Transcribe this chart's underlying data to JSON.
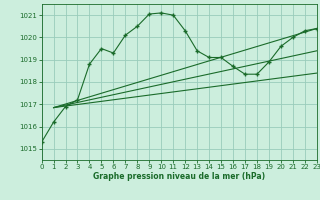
{
  "xlabel": "Graphe pression niveau de la mer (hPa)",
  "bg_color": "#cceedd",
  "grid_color": "#99ccbb",
  "line_color": "#1a6b2a",
  "ylim": [
    1014.5,
    1021.5
  ],
  "xlim": [
    0,
    23
  ],
  "yticks": [
    1015,
    1016,
    1017,
    1018,
    1019,
    1020,
    1021
  ],
  "xticks": [
    0,
    1,
    2,
    3,
    4,
    5,
    6,
    7,
    8,
    9,
    10,
    11,
    12,
    13,
    14,
    15,
    16,
    17,
    18,
    19,
    20,
    21,
    22,
    23
  ],
  "series1_x": [
    0,
    1,
    2,
    3,
    4,
    5,
    6,
    7,
    8,
    9,
    10,
    11,
    12,
    13,
    14,
    15,
    16,
    17,
    18,
    19,
    20,
    21,
    22,
    23
  ],
  "series1_y": [
    1015.3,
    1016.2,
    1016.9,
    1017.2,
    1018.8,
    1019.5,
    1019.3,
    1020.1,
    1020.5,
    1021.05,
    1021.1,
    1021.0,
    1020.3,
    1019.4,
    1019.1,
    1019.1,
    1018.7,
    1018.35,
    1018.35,
    1018.9,
    1019.6,
    1020.0,
    1020.3,
    1020.4
  ],
  "line2_x": [
    1,
    23
  ],
  "line2_y": [
    1016.85,
    1020.4
  ],
  "line3_x": [
    1,
    23
  ],
  "line3_y": [
    1016.85,
    1018.4
  ],
  "line4_x": [
    1,
    23
  ],
  "line4_y": [
    1016.85,
    1019.4
  ],
  "fig_width": 3.2,
  "fig_height": 2.0,
  "dpi": 100,
  "tick_labelsize": 5,
  "xlabel_fontsize": 5.5
}
